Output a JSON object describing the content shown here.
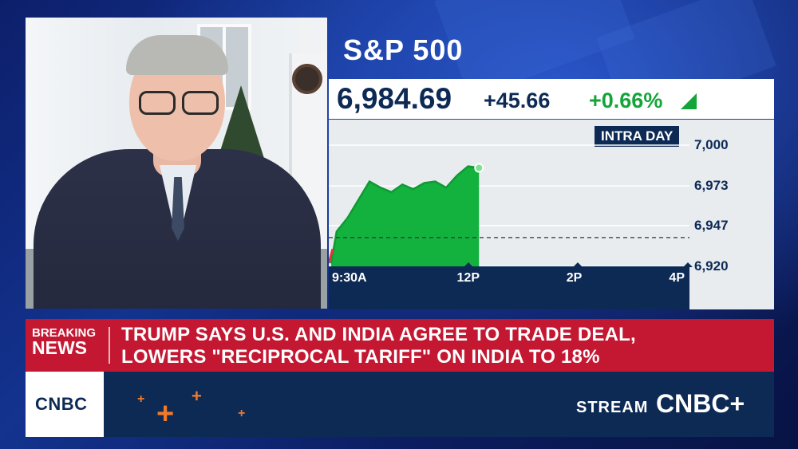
{
  "index": {
    "title": "S&P 500",
    "price": "6,984.69",
    "change": "+45.66",
    "percent": "+0.66%",
    "direction": "up",
    "badge": "INTRA DAY"
  },
  "chart_data": {
    "type": "area",
    "x_ticks": [
      "9:30A",
      "12P",
      "2P",
      "4P"
    ],
    "y_ticks": [
      "7,000",
      "6,973",
      "6,947",
      "6,920"
    ],
    "ylim": [
      6920,
      7000
    ],
    "previous_close": 6939.03,
    "x_hours": [
      9.5,
      9.6,
      9.8,
      10.0,
      10.2,
      10.4,
      10.6,
      10.8,
      11.0,
      11.2,
      11.4,
      11.6,
      11.8,
      12.0,
      12.2
    ],
    "values": [
      6922,
      6943,
      6952,
      6964,
      6976,
      6972,
      6969,
      6974,
      6971,
      6975,
      6976,
      6972,
      6980,
      6986,
      6985
    ],
    "x_range_hours": [
      9.5,
      16.0
    ],
    "colors": {
      "fill": "#13b23e",
      "line": "#0f9a34",
      "baseline": "#333333",
      "accent_start": "#e8333b"
    }
  },
  "banner": {
    "label_top": "BREAKING",
    "label_bottom": "NEWS",
    "headline_line1": "TRUMP SAYS U.S. AND INDIA AGREE TO TRADE DEAL,",
    "headline_line2": "LOWERS \"RECIPROCAL TARIFF\" ON INDIA TO 18%"
  },
  "footer": {
    "network_logo": "CNBC",
    "stream_label": "STREAM",
    "stream_brand": "CNBC+"
  },
  "colors": {
    "navy": "#0d2a55",
    "green": "#13a538",
    "breaking_red": "#c41832",
    "orange": "#ee7a2b"
  }
}
